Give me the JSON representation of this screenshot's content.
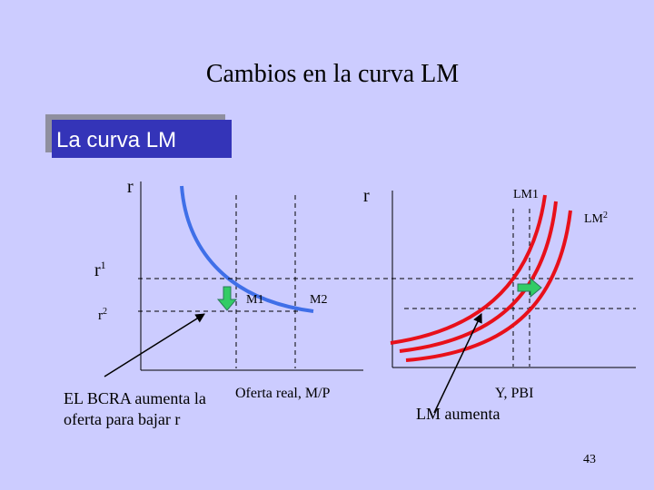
{
  "title": "Cambios en la curva LM",
  "box_label": "La curva LM",
  "left_graph": {
    "y_label": "r",
    "r1": {
      "base": "r",
      "sup": "1"
    },
    "r2": {
      "base": "r",
      "sup": "2"
    },
    "m1": "M1",
    "m2": "M2",
    "x_label": "Oferta real, M/P"
  },
  "right_graph": {
    "y_label": "r",
    "lm1": "LM1",
    "lm2": {
      "base": "LM",
      "sup": "2"
    },
    "x_label": "Y, PBI"
  },
  "annotations": {
    "bcra": [
      "EL BCRA aumenta la",
      "oferta para bajar r"
    ],
    "lm_up": "LM aumenta"
  },
  "page_number": "43"
}
